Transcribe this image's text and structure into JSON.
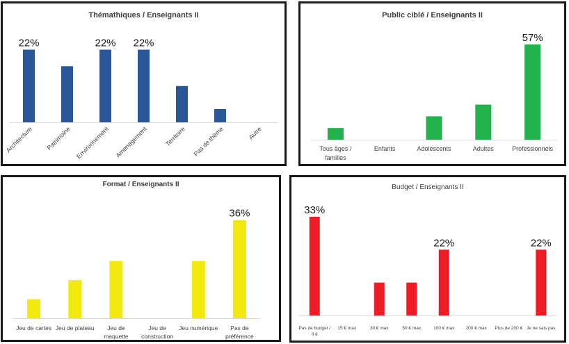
{
  "chart_data": [
    {
      "type": "bar",
      "title": "Thémathiques / Enseignants II",
      "categories": [
        "Architecture",
        "Patrimoine",
        "Environnement",
        "Amenagement",
        "Territoire",
        "Pas de thème",
        "Autre"
      ],
      "values": [
        22,
        17,
        22,
        22,
        11,
        4,
        0
      ],
      "data_labels": [
        "22%",
        "",
        "22%",
        "22%",
        "",
        "",
        ""
      ],
      "value_unit": "%",
      "color": "#2b5697",
      "ylim": [
        0,
        24
      ],
      "grid": false
    },
    {
      "type": "bar",
      "title": "Public ciblé / Enseignants II",
      "categories": [
        "Tous âges / familles",
        "Enfants",
        "Adolescents",
        "Adultes",
        "Professionnels"
      ],
      "values": [
        7,
        0,
        14,
        21,
        57
      ],
      "data_labels": [
        "",
        "",
        "",
        "",
        "57%"
      ],
      "value_unit": "%",
      "color": "#22b14c",
      "ylim": [
        0,
        62
      ],
      "grid": false
    },
    {
      "type": "bar",
      "title": "Format / Enseignants II",
      "categories": [
        "Jeu de cartes",
        "Jeu de plateau",
        "Jeu de maquette",
        "Jeu de construction",
        "Jeu numérique",
        "Pas de préférence"
      ],
      "values": [
        7,
        14,
        21,
        0,
        21,
        36
      ],
      "data_labels": [
        "",
        "",
        "",
        "",
        "",
        "36%"
      ],
      "value_unit": "%",
      "color": "#f2ea0f",
      "ylim": [
        0,
        40
      ],
      "grid": false
    },
    {
      "type": "bar",
      "title": "Budget / Enseignants II",
      "categories": [
        "Pas de budget / 0 €",
        "15 € max",
        "30 € max",
        "50 € max",
        "100 € max",
        "200 € max",
        "Plus de 200 €",
        "Je ne sais pas"
      ],
      "values": [
        33,
        0,
        11,
        11,
        22,
        0,
        0,
        22
      ],
      "data_labels": [
        "33%",
        "",
        "",
        "",
        "22%",
        "",
        "",
        "22%"
      ],
      "value_unit": "%",
      "color": "#ee1c24",
      "ylim": [
        0,
        36
      ],
      "grid": false
    }
  ]
}
